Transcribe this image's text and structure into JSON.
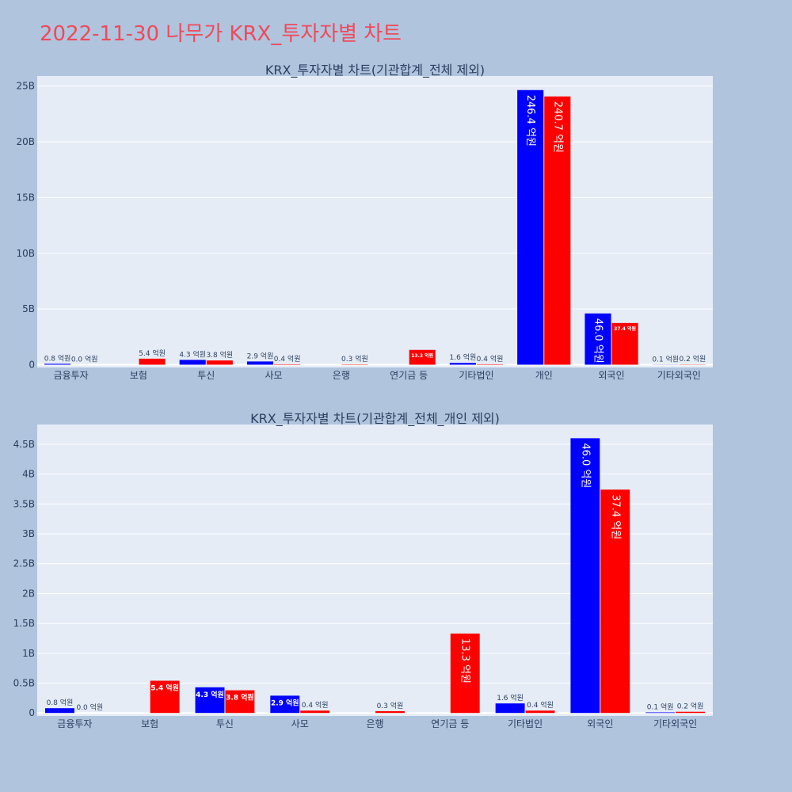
{
  "page": {
    "title": "2022-11-30 나무가 KRX_투자자별 차트"
  },
  "colors": {
    "page_background": "#b0c4de",
    "plot_background": "#e5ecf6",
    "buy_series": "#0000ff",
    "sell_series": "#ff0000",
    "title": "#ef4a5a"
  },
  "chart_data": [
    {
      "type": "bar",
      "title": "KRX_투자자별 차트(기관합계_전체 제외)",
      "categories": [
        "금융투자",
        "보험",
        "투신",
        "사모",
        "은행",
        "연기금 등",
        "기타법인",
        "개인",
        "외국인",
        "기타외국인"
      ],
      "series": [
        {
          "color": "#0000ff",
          "values": [
            80000000,
            0,
            430000000,
            290000000,
            0,
            0,
            160000000,
            24640000000,
            4600000000,
            10000000
          ],
          "labels": [
            "0.8 억원",
            "",
            "4.3 억원",
            "2.9 억원",
            "",
            "",
            "1.6 억원",
            "246.4 억원",
            "46.0 억원",
            "0.1 억원"
          ]
        },
        {
          "color": "#ff0000",
          "values": [
            0,
            540000000,
            380000000,
            40000000,
            30000000,
            1330000000,
            40000000,
            24070000000,
            3740000000,
            20000000
          ],
          "labels": [
            "0.0 억원",
            "5.4 억원",
            "3.8 억원",
            "0.4 억원",
            "0.3 억원",
            "13.3 억원",
            "0.4 억원",
            "240.7 억원",
            "37.4 억원",
            "0.2 억원"
          ]
        }
      ],
      "yticks": [
        {
          "value": 0,
          "label": "0"
        },
        {
          "value": 5000000000,
          "label": "5B"
        },
        {
          "value": 10000000000,
          "label": "10B"
        },
        {
          "value": 15000000000,
          "label": "15B"
        },
        {
          "value": 20000000000,
          "label": "20B"
        },
        {
          "value": 25000000000,
          "label": "25B"
        }
      ],
      "ylim": [
        -250000000,
        25900000000
      ],
      "grid": true,
      "legend": "none"
    },
    {
      "type": "bar",
      "title": "KRX_투자자별 차트(기관합계_전체_개인 제외)",
      "categories": [
        "금융투자",
        "보험",
        "투신",
        "사모",
        "은행",
        "연기금 등",
        "기타법인",
        "외국인",
        "기타외국인"
      ],
      "series": [
        {
          "color": "#0000ff",
          "values": [
            80000000,
            0,
            430000000,
            290000000,
            0,
            0,
            160000000,
            4600000000,
            10000000
          ],
          "labels": [
            "0.8 억원",
            "",
            "4.3 억원",
            "2.9 억원",
            "",
            "",
            "1.6 억원",
            "46.0 억원",
            "0.1 억원"
          ]
        },
        {
          "color": "#ff0000",
          "values": [
            0,
            540000000,
            380000000,
            40000000,
            30000000,
            1330000000,
            40000000,
            3740000000,
            20000000
          ],
          "labels": [
            "0.0 억원",
            "5.4 억원",
            "3.8 억원",
            "0.4 억원",
            "0.3 억원",
            "13.3 억원",
            "0.4 억원",
            "37.4 억원",
            "0.2 억원"
          ]
        }
      ],
      "yticks": [
        {
          "value": 0,
          "label": "0"
        },
        {
          "value": 500000000,
          "label": "0.5B"
        },
        {
          "value": 1000000000,
          "label": "1B"
        },
        {
          "value": 1500000000,
          "label": "1.5B"
        },
        {
          "value": 2000000000,
          "label": "2B"
        },
        {
          "value": 2500000000,
          "label": "2.5B"
        },
        {
          "value": 3000000000,
          "label": "3B"
        },
        {
          "value": 3500000000,
          "label": "3.5B"
        },
        {
          "value": 4000000000,
          "label": "4B"
        },
        {
          "value": 4500000000,
          "label": "4.5B"
        }
      ],
      "ylim": [
        -50000000,
        4830000000
      ],
      "grid": true,
      "legend": "none"
    }
  ]
}
